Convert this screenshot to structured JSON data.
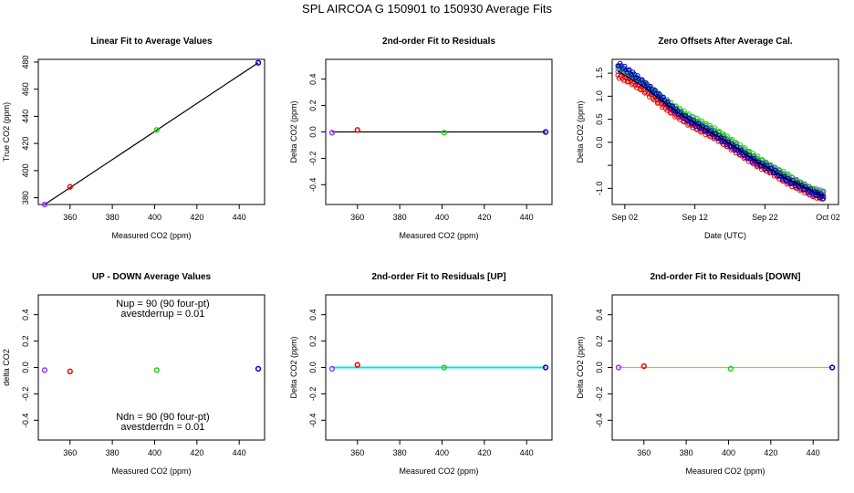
{
  "title": "SPL   AIRCOA G   150901 to 150930   Average Fits",
  "colors": {
    "purple": "#9933ff",
    "red": "#ee0000",
    "green": "#22cc22",
    "blue": "#0000cc",
    "black": "#000000",
    "cyan": "#00e5e5",
    "orange": "#ffa500"
  },
  "chart_data": [
    {
      "id": "p1",
      "type": "scatter",
      "title": "Linear Fit to Average Values",
      "xlabel": "Measured CO2 (ppm)",
      "ylabel": "True CO2 (ppm)",
      "xlim": [
        345,
        452
      ],
      "ylim": [
        375,
        482
      ],
      "xticks": [
        360,
        380,
        400,
        420,
        440
      ],
      "yticks": [
        380,
        400,
        420,
        440,
        460,
        480
      ],
      "points": [
        {
          "x": 348,
          "y": 375,
          "c": "purple"
        },
        {
          "x": 360,
          "y": 388,
          "c": "red"
        },
        {
          "x": 401,
          "y": 430,
          "c": "green"
        },
        {
          "x": 449,
          "y": 479.5,
          "c": "blue"
        }
      ],
      "lines": [
        {
          "x": [
            348,
            449
          ],
          "y": [
            375,
            479.5
          ],
          "c": "black"
        }
      ]
    },
    {
      "id": "p2",
      "type": "scatter",
      "title": "2nd-order Fit to Residuals",
      "xlabel": "Measured CO2 (ppm)",
      "ylabel": "Delta CO2 (ppm)",
      "xlim": [
        345,
        452
      ],
      "ylim": [
        -0.55,
        0.55
      ],
      "xticks": [
        360,
        380,
        400,
        420,
        440
      ],
      "yticks": [
        -0.4,
        -0.2,
        0.0,
        0.2,
        0.4
      ],
      "points": [
        {
          "x": 348,
          "y": -0.005,
          "c": "purple"
        },
        {
          "x": 360,
          "y": 0.015,
          "c": "red"
        },
        {
          "x": 401,
          "y": -0.005,
          "c": "green"
        },
        {
          "x": 449,
          "y": 0.0,
          "c": "blue"
        }
      ],
      "lines": [
        {
          "x": [
            348,
            449
          ],
          "y": [
            0.0,
            0.0
          ],
          "c": "black"
        }
      ]
    },
    {
      "id": "p3",
      "type": "scatter",
      "title": "Zero Offsets After Average Cal.",
      "xlabel": "Date (UTC)",
      "ylabel": "Delta CO2 (ppm)",
      "xlim": [
        -0.8,
        31.5
      ],
      "ylim": [
        -1.35,
        1.8
      ],
      "xticks": [
        1,
        11,
        21,
        30
      ],
      "xticklabels": [
        "Sep 02",
        "Sep 12",
        "Sep 22",
        "Oct 02"
      ],
      "yticks": [
        -1.0,
        -0.5,
        0.0,
        0.5,
        1.0,
        1.5
      ],
      "yticklabels": [
        "-1.0",
        "",
        "0.0",
        "0.5",
        "1.0",
        "1.5"
      ],
      "series": [
        {
          "name": "purple",
          "c": "purple",
          "x": [
            0,
            2,
            4,
            6,
            8,
            10,
            12,
            14,
            16,
            18,
            20,
            22,
            24,
            26,
            28,
            29.5
          ],
          "y": [
            1.55,
            1.4,
            1.2,
            0.95,
            0.7,
            0.5,
            0.35,
            0.2,
            0.0,
            -0.2,
            -0.4,
            -0.55,
            -0.75,
            -0.9,
            -1.05,
            -1.1
          ]
        },
        {
          "name": "red",
          "c": "red",
          "x": [
            0,
            2,
            4,
            6,
            8,
            10,
            12,
            14,
            16,
            18,
            20,
            22,
            24,
            26,
            28,
            29.5
          ],
          "y": [
            1.45,
            1.3,
            1.1,
            0.85,
            0.62,
            0.42,
            0.25,
            0.1,
            -0.1,
            -0.3,
            -0.5,
            -0.65,
            -0.85,
            -1.0,
            -1.15,
            -1.2
          ]
        },
        {
          "name": "green",
          "c": "green",
          "x": [
            0,
            2,
            4,
            6,
            8,
            10,
            12,
            14,
            16,
            18,
            20,
            22,
            24,
            26,
            28,
            29.5
          ],
          "y": [
            1.65,
            1.45,
            1.25,
            1.0,
            0.78,
            0.58,
            0.42,
            0.25,
            0.05,
            -0.15,
            -0.35,
            -0.55,
            -0.7,
            -0.9,
            -1.05,
            -1.15
          ]
        },
        {
          "name": "blue",
          "c": "blue",
          "x": [
            0,
            2,
            4,
            6,
            8,
            10,
            12,
            14,
            16,
            18,
            20,
            22,
            24,
            26,
            28,
            29.5
          ],
          "y": [
            1.7,
            1.5,
            1.25,
            1.0,
            0.72,
            0.5,
            0.32,
            0.15,
            -0.05,
            -0.25,
            -0.45,
            -0.6,
            -0.8,
            -0.95,
            -1.1,
            -1.2
          ]
        }
      ],
      "lines": [
        {
          "x": [
            0,
            4,
            8,
            12,
            16,
            20,
            24,
            28,
            29.5
          ],
          "y": [
            1.55,
            1.17,
            0.7,
            0.33,
            -0.03,
            -0.43,
            -0.78,
            -1.07,
            -1.15
          ],
          "c": "black"
        }
      ]
    },
    {
      "id": "p4",
      "type": "scatter",
      "title": "UP - DOWN Average Values",
      "xlabel": "Measured CO2 (ppm)",
      "ylabel": "delta CO2",
      "xlim": [
        345,
        452
      ],
      "ylim": [
        -0.55,
        0.55
      ],
      "xticks": [
        360,
        380,
        400,
        420,
        440
      ],
      "yticks": [
        -0.4,
        -0.2,
        0.0,
        0.2,
        0.4
      ],
      "points": [
        {
          "x": 348,
          "y": -0.02,
          "c": "purple"
        },
        {
          "x": 360,
          "y": -0.03,
          "c": "red"
        },
        {
          "x": 401,
          "y": -0.02,
          "c": "green"
        },
        {
          "x": 449,
          "y": -0.01,
          "c": "blue"
        }
      ],
      "annotations": [
        "Nup = 90 (90 four-pt)",
        "avestderrup =  0.01",
        "Ndn = 90 (90 four-pt)",
        "avestderrdn =  0.01"
      ]
    },
    {
      "id": "p5",
      "type": "scatter",
      "title": "2nd-order Fit to Residuals [UP]",
      "xlabel": "Measured CO2 (ppm)",
      "ylabel": "Delta CO2 (ppm)",
      "xlim": [
        345,
        452
      ],
      "ylim": [
        -0.55,
        0.55
      ],
      "xticks": [
        360,
        380,
        400,
        420,
        440
      ],
      "yticks": [
        -0.4,
        -0.2,
        0.0,
        0.2,
        0.4
      ],
      "points": [
        {
          "x": 348,
          "y": -0.01,
          "c": "purple"
        },
        {
          "x": 360,
          "y": 0.02,
          "c": "red"
        },
        {
          "x": 401,
          "y": 0.0,
          "c": "green"
        },
        {
          "x": 449,
          "y": 0.0,
          "c": "blue"
        }
      ],
      "lines": [
        {
          "x": [
            348,
            449
          ],
          "y": [
            0.0,
            0.0
          ],
          "c": "cyan"
        }
      ]
    },
    {
      "id": "p6",
      "type": "scatter",
      "title": "2nd-order Fit to Residuals [DOWN]",
      "xlabel": "Measured CO2 (ppm)",
      "ylabel": "Delta CO2 (ppm)",
      "xlim": [
        345,
        452
      ],
      "ylim": [
        -0.55,
        0.55
      ],
      "xticks": [
        360,
        380,
        400,
        420,
        440
      ],
      "yticks": [
        -0.4,
        -0.2,
        0.0,
        0.2,
        0.4
      ],
      "points": [
        {
          "x": 348,
          "y": 0.0,
          "c": "purple"
        },
        {
          "x": 360,
          "y": 0.01,
          "c": "red"
        },
        {
          "x": 401,
          "y": -0.01,
          "c": "green"
        },
        {
          "x": 449,
          "y": 0.0,
          "c": "blue"
        }
      ],
      "lines": [
        {
          "x": [
            348,
            449
          ],
          "y": [
            0.0,
            0.0
          ],
          "c": "orange"
        }
      ]
    }
  ]
}
